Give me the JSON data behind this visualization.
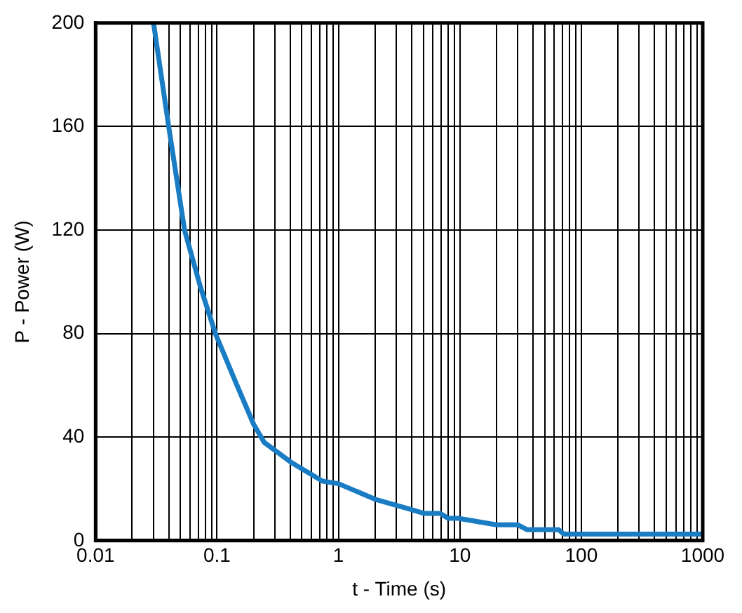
{
  "chart_data": {
    "type": "line",
    "xlabel": "t - Time (s)",
    "ylabel": "P - Power (W)",
    "log": "x",
    "xlim": [
      0.01,
      1000
    ],
    "xticks": [
      0.01,
      0.1,
      1,
      10,
      100,
      1000
    ],
    "ylim": [
      0,
      200
    ],
    "yticks": [
      0,
      40,
      80,
      120,
      160,
      200
    ],
    "grid": true,
    "legend": false,
    "marker": "none",
    "line_style": "solid",
    "series": [
      {
        "color": "#1a7dc4",
        "x": [
          0.03,
          0.04,
          0.054,
          0.073,
          0.097,
          0.143,
          0.2,
          0.244,
          0.415,
          0.74,
          1.0,
          2.0,
          4.0,
          5.1,
          6.9,
          8.0,
          9.7,
          20,
          30,
          36,
          65,
          72,
          1000
        ],
        "values": [
          200,
          160,
          120,
          98,
          80,
          61,
          45,
          38,
          30,
          23,
          22,
          16,
          12,
          10.5,
          10.5,
          8.6,
          8.6,
          6.1,
          6.1,
          4.2,
          4.2,
          2.5,
          2.5
        ]
      }
    ]
  }
}
